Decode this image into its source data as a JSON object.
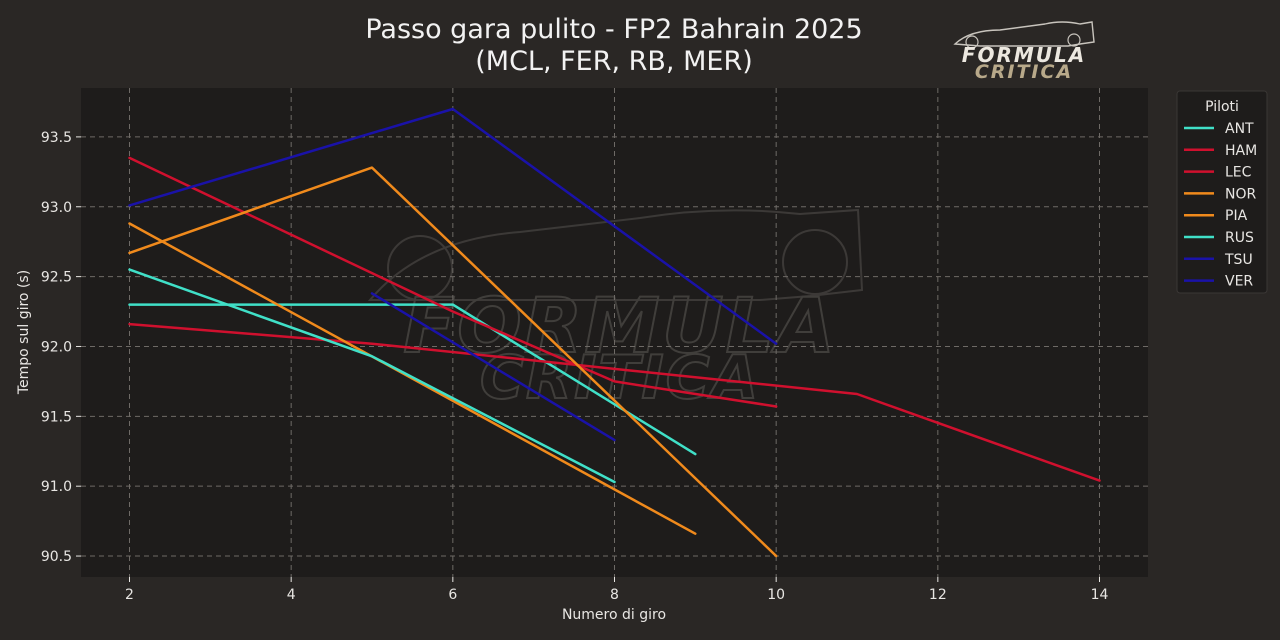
{
  "chart_data": {
    "type": "line",
    "title": "Passo gara pulito - FP2 Bahrain 2025",
    "subtitle": "(MCL, FER, RB, MER)",
    "xlabel": "Numero di giro",
    "ylabel": "Tempo sul giro (s)",
    "xlim": [
      1.4,
      14.6
    ],
    "ylim": [
      90.35,
      93.85
    ],
    "xticks": [
      2,
      4,
      6,
      8,
      10,
      12,
      14
    ],
    "yticks": [
      90.5,
      91.0,
      91.5,
      92.0,
      92.5,
      93.0,
      93.5
    ],
    "grid": true,
    "legend": {
      "title": "Piloti",
      "placement": "right"
    },
    "series": [
      {
        "name": "ANT",
        "color": "#40e0c8",
        "x": [
          2,
          6,
          9
        ],
        "y": [
          92.3,
          92.3,
          91.23
        ]
      },
      {
        "name": "HAM",
        "color": "#d0102e",
        "x": [
          2,
          6,
          8,
          10
        ],
        "y": [
          93.35,
          92.25,
          91.75,
          91.57
        ]
      },
      {
        "name": "LEC",
        "color": "#d0102e",
        "x": [
          2,
          5,
          11,
          14
        ],
        "y": [
          92.16,
          92.02,
          91.66,
          91.04
        ]
      },
      {
        "name": "NOR",
        "color": "#f08a1c",
        "x": [
          2,
          5,
          10
        ],
        "y": [
          92.67,
          93.28,
          90.5
        ]
      },
      {
        "name": "PIA",
        "color": "#f08a1c",
        "x": [
          2,
          9
        ],
        "y": [
          92.88,
          90.66
        ]
      },
      {
        "name": "RUS",
        "color": "#40e0c8",
        "x": [
          2,
          5,
          8
        ],
        "y": [
          92.55,
          91.93,
          91.03
        ]
      },
      {
        "name": "TSU",
        "color": "#1a12a8",
        "x": [
          5,
          8
        ],
        "y": [
          92.38,
          91.33
        ]
      },
      {
        "name": "VER",
        "color": "#1a12a8",
        "x": [
          2,
          6,
          10
        ],
        "y": [
          93.01,
          93.7,
          92.02
        ]
      }
    ]
  },
  "logo": {
    "line1": "FORMULA",
    "line2": "CRITICA"
  }
}
